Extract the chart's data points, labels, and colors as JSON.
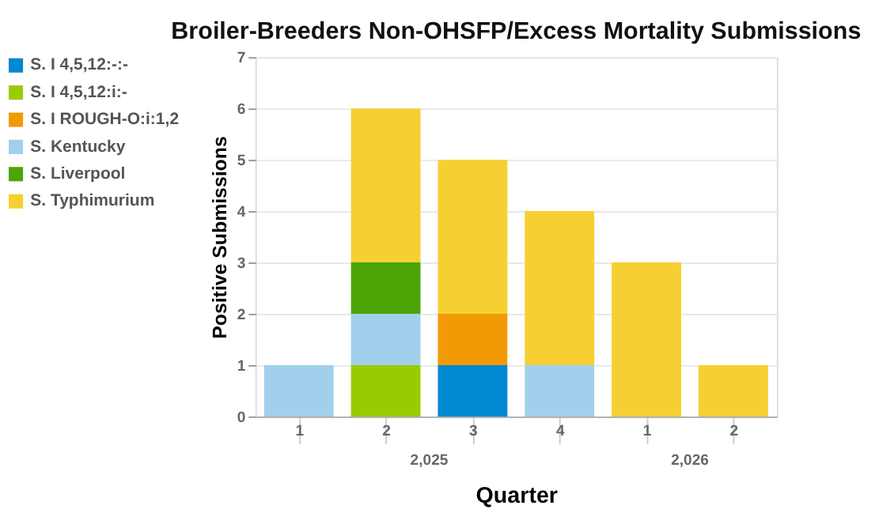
{
  "chart_data": {
    "type": "bar",
    "title": "Broiler-Breeders Non-OHSFP/Excess Mortality Submissions",
    "xlabel": "Quarter",
    "ylabel": "Positive Submissions",
    "categories": [
      "1",
      "2",
      "3",
      "4",
      "1",
      "2"
    ],
    "annotations": [
      "2,025",
      "2,026"
    ],
    "stacked": true,
    "series": [
      {
        "name": "S. I 4,5,12:-:-",
        "color": "#0088d1",
        "values": [
          0,
          0,
          1,
          0,
          0,
          0
        ]
      },
      {
        "name": "S. I 4,5,12:i:-",
        "color": "#99cc00",
        "values": [
          0,
          1,
          0,
          0,
          0,
          0
        ]
      },
      {
        "name": "S. I ROUGH-O:i:1,2",
        "color": "#f29a05",
        "values": [
          0,
          0,
          1,
          0,
          0,
          0
        ]
      },
      {
        "name": "S. Kentucky",
        "color": "#a2cfec",
        "values": [
          1,
          1,
          0,
          1,
          0,
          0
        ]
      },
      {
        "name": "S. Liverpool",
        "color": "#4ca507",
        "values": [
          0,
          1,
          0,
          0,
          0,
          0
        ]
      },
      {
        "name": "S. Typhimurium",
        "color": "#f6d033",
        "values": [
          0,
          3,
          3,
          3,
          3,
          1
        ]
      }
    ],
    "ylim": [
      0,
      7
    ],
    "yticks": [
      0,
      1,
      2,
      3,
      4,
      5,
      6,
      7
    ],
    "grid": "y",
    "legend": "left"
  }
}
